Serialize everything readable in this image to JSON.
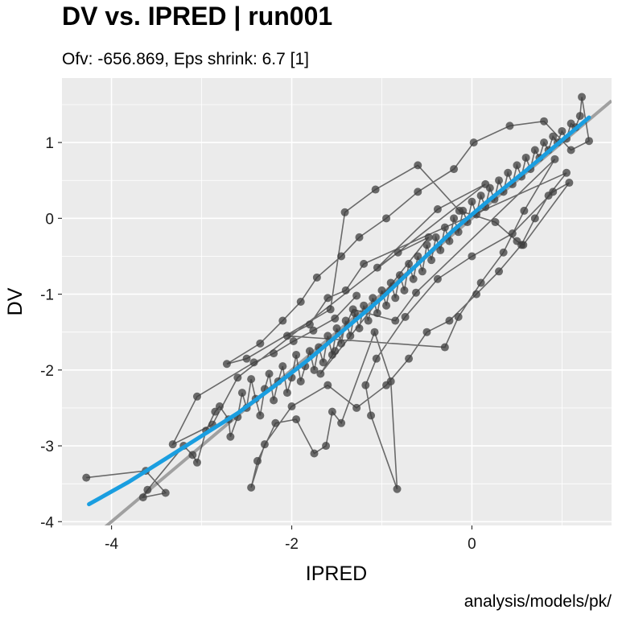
{
  "chart_data": {
    "type": "scatter",
    "title": "DV vs. IPRED | run001",
    "subtitle": "Ofv: -656.869, Eps shrink: 6.7 [1]",
    "xlabel": "IPRED",
    "ylabel": "DV",
    "caption": "analysis/models/pk/",
    "xlim": [
      -4.55,
      1.55
    ],
    "ylim": [
      -4.05,
      1.85
    ],
    "x_ticks": [
      -4,
      -2,
      0
    ],
    "x_tick_labels": [
      "-4",
      "-2",
      "0"
    ],
    "y_ticks": [
      -4,
      -3,
      -2,
      -1,
      0,
      1
    ],
    "y_tick_labels": [
      "-4",
      "-3",
      "-2",
      "-1",
      "0",
      "1"
    ],
    "grid": true,
    "legend": "none",
    "colors": {
      "panel": "#ebebeb",
      "grid_major": "#ffffff",
      "points": "#3d3d3d",
      "identity_line": "#a0a0a0",
      "smooth": "#1a9ee0"
    },
    "identity_line": {
      "intercept": 0,
      "slope": 1
    },
    "smooth": {
      "x": [
        -4.25,
        -3.8,
        -3.4,
        -3.0,
        -2.6,
        -2.2,
        -1.8,
        -1.4,
        -1.0,
        -0.6,
        -0.2,
        0.2,
        0.6,
        1.0,
        1.3
      ],
      "y": [
        -3.77,
        -3.47,
        -3.17,
        -2.87,
        -2.57,
        -2.22,
        -1.85,
        -1.45,
        -1.05,
        -0.6,
        -0.15,
        0.25,
        0.63,
        1.03,
        1.33
      ]
    },
    "series": [
      {
        "name": "",
        "points": [
          [
            -4.28,
            -3.42
          ],
          [
            -3.62,
            -3.33
          ],
          [
            -3.4,
            -3.62
          ],
          [
            -3.65,
            -3.68
          ],
          [
            -3.6,
            -3.58
          ],
          [
            -3.2,
            -3.0
          ],
          [
            -3.1,
            -3.12
          ],
          [
            -3.05,
            -3.22
          ],
          [
            -2.95,
            -2.8
          ],
          [
            -2.85,
            -2.55
          ],
          [
            -2.8,
            -2.48
          ],
          [
            -2.7,
            -2.65
          ],
          [
            -2.68,
            -2.88
          ],
          [
            -2.6,
            -2.62
          ],
          [
            -2.55,
            -2.3
          ],
          [
            -2.5,
            -2.5
          ],
          [
            -2.45,
            -2.12
          ],
          [
            -2.4,
            -2.38
          ],
          [
            -2.35,
            -2.6
          ],
          [
            -2.3,
            -2.25
          ],
          [
            -2.25,
            -2.05
          ],
          [
            -2.2,
            -2.4
          ],
          [
            -2.15,
            -2.15
          ],
          [
            -2.1,
            -1.95
          ],
          [
            -2.05,
            -2.3
          ],
          [
            -2.0,
            -2.1
          ],
          [
            -1.95,
            -1.8
          ],
          [
            -1.9,
            -2.15
          ],
          [
            -1.85,
            -1.95
          ],
          [
            -1.8,
            -1.75
          ],
          [
            -1.75,
            -2.0
          ],
          [
            -1.7,
            -1.7
          ],
          [
            -1.65,
            -1.9
          ],
          [
            -1.6,
            -1.55
          ],
          [
            -1.55,
            -1.8
          ],
          [
            -1.5,
            -1.45
          ],
          [
            -1.45,
            -1.65
          ],
          [
            -1.4,
            -1.35
          ],
          [
            -1.35,
            -1.55
          ],
          [
            -1.3,
            -1.25
          ],
          [
            -1.25,
            -1.45
          ],
          [
            -1.2,
            -1.15
          ],
          [
            -1.15,
            -1.35
          ],
          [
            -1.1,
            -1.05
          ],
          [
            -1.05,
            -1.25
          ],
          [
            -1.0,
            -0.95
          ],
          [
            -0.95,
            -1.15
          ],
          [
            -0.9,
            -0.85
          ],
          [
            -0.85,
            -1.05
          ],
          [
            -0.8,
            -0.75
          ],
          [
            -0.75,
            -0.95
          ],
          [
            -0.7,
            -0.6
          ],
          [
            -0.65,
            -0.8
          ],
          [
            -0.6,
            -0.5
          ],
          [
            -0.55,
            -0.7
          ],
          [
            -0.5,
            -0.35
          ],
          [
            -0.45,
            -0.55
          ],
          [
            -0.4,
            -0.25
          ],
          [
            -0.35,
            -0.42
          ],
          [
            -0.3,
            -0.12
          ],
          [
            -0.25,
            -0.3
          ],
          [
            -0.2,
            0.0
          ],
          [
            -0.15,
            -0.18
          ],
          [
            -0.1,
            0.1
          ],
          [
            -0.05,
            -0.05
          ],
          [
            0.0,
            0.22
          ],
          [
            0.05,
            0.05
          ],
          [
            0.1,
            0.3
          ],
          [
            0.15,
            0.15
          ],
          [
            0.2,
            0.4
          ],
          [
            0.25,
            0.25
          ],
          [
            0.3,
            0.5
          ],
          [
            0.35,
            0.35
          ],
          [
            0.4,
            0.6
          ],
          [
            0.45,
            0.45
          ],
          [
            0.5,
            0.7
          ],
          [
            0.55,
            0.55
          ],
          [
            0.6,
            0.8
          ],
          [
            0.65,
            0.65
          ],
          [
            0.7,
            0.9
          ],
          [
            0.75,
            0.8
          ],
          [
            0.8,
            1.0
          ],
          [
            0.85,
            0.9
          ],
          [
            0.9,
            1.08
          ],
          [
            0.95,
            1.0
          ],
          [
            1.0,
            1.15
          ],
          [
            1.05,
            1.05
          ],
          [
            1.1,
            1.25
          ],
          [
            1.15,
            1.2
          ],
          [
            1.2,
            1.35
          ],
          [
            1.22,
            1.6
          ],
          [
            1.3,
            1.02
          ],
          [
            1.1,
            0.9
          ],
          [
            0.8,
            1.28
          ],
          [
            0.42,
            1.22
          ],
          [
            0.02,
            1.0
          ],
          [
            -0.2,
            0.65
          ],
          [
            -0.6,
            0.35
          ],
          [
            -0.95,
            0.0
          ],
          [
            -1.25,
            -0.25
          ],
          [
            -1.45,
            -0.5
          ],
          [
            -1.72,
            -0.78
          ],
          [
            -1.9,
            -1.1
          ],
          [
            -2.1,
            -1.35
          ],
          [
            -2.35,
            -1.65
          ],
          [
            -2.72,
            -1.92
          ],
          [
            -2.5,
            -1.85
          ],
          [
            -1.57,
            -1.2
          ],
          [
            -1.41,
            0.08
          ],
          [
            -1.07,
            0.38
          ],
          [
            -0.6,
            0.7
          ],
          [
            -0.14,
            0.1
          ],
          [
            0.26,
            -0.05
          ],
          [
            0.5,
            -0.3
          ],
          [
            0.57,
            -0.35
          ],
          [
            1.08,
            0.47
          ],
          [
            0.9,
            0.35
          ],
          [
            0.45,
            -0.2
          ],
          [
            0.0,
            -0.5
          ],
          [
            -0.38,
            -0.8
          ],
          [
            -0.74,
            -1.3
          ],
          [
            -1.06,
            -1.85
          ],
          [
            -1.18,
            -2.2
          ],
          [
            -1.12,
            -2.6
          ],
          [
            -0.83,
            -3.57
          ],
          [
            -0.9,
            -2.15
          ],
          [
            -1.08,
            -1.5
          ],
          [
            -1.45,
            -2.7
          ],
          [
            -1.55,
            -2.55
          ],
          [
            -1.62,
            -3.0
          ],
          [
            -1.75,
            -3.1
          ],
          [
            -1.95,
            -2.65
          ],
          [
            -2.18,
            -2.7
          ],
          [
            -2.38,
            -3.2
          ],
          [
            -2.45,
            -3.55
          ],
          [
            -2.3,
            -2.98
          ],
          [
            -2.0,
            -2.48
          ],
          [
            -1.6,
            -2.2
          ],
          [
            -1.28,
            -2.5
          ],
          [
            -0.95,
            -2.2
          ],
          [
            -0.7,
            -1.85
          ],
          [
            -0.5,
            -1.5
          ],
          [
            -0.25,
            -1.35
          ],
          [
            0.05,
            -1.0
          ],
          [
            0.3,
            -0.7
          ],
          [
            0.55,
            -0.35
          ],
          [
            0.7,
            0.0
          ],
          [
            0.85,
            0.3
          ],
          [
            1.05,
            0.6
          ],
          [
            -1.2,
            -0.6
          ],
          [
            -1.4,
            -0.95
          ],
          [
            -1.6,
            -1.05
          ],
          [
            -1.8,
            -1.4
          ],
          [
            -2.05,
            -1.55
          ],
          [
            -0.3,
            -1.7
          ],
          [
            -0.15,
            -1.3
          ],
          [
            0.1,
            -0.85
          ],
          [
            0.35,
            -0.45
          ],
          [
            0.58,
            0.1
          ],
          [
            0.92,
            0.78
          ],
          [
            -0.62,
            -0.98
          ],
          [
            -0.85,
            -1.35
          ],
          [
            -1.32,
            -1.2
          ],
          [
            -1.52,
            -1.75
          ],
          [
            -1.68,
            -2.05
          ],
          [
            -0.48,
            -0.25
          ],
          [
            -0.82,
            -0.45
          ],
          [
            -1.05,
            -0.65
          ],
          [
            -0.38,
            0.12
          ],
          [
            0.15,
            0.45
          ],
          [
            -2.6,
            -2.1
          ],
          [
            -2.88,
            -2.72
          ],
          [
            -3.32,
            -2.98
          ],
          [
            -3.05,
            -2.35
          ],
          [
            -2.42,
            -1.9
          ],
          [
            -2.2,
            -1.78
          ],
          [
            -1.98,
            -1.62
          ],
          [
            -1.76,
            -1.48
          ],
          [
            -1.52,
            -1.32
          ],
          [
            -1.28,
            -1.02
          ]
        ],
        "connected": true
      }
    ]
  }
}
